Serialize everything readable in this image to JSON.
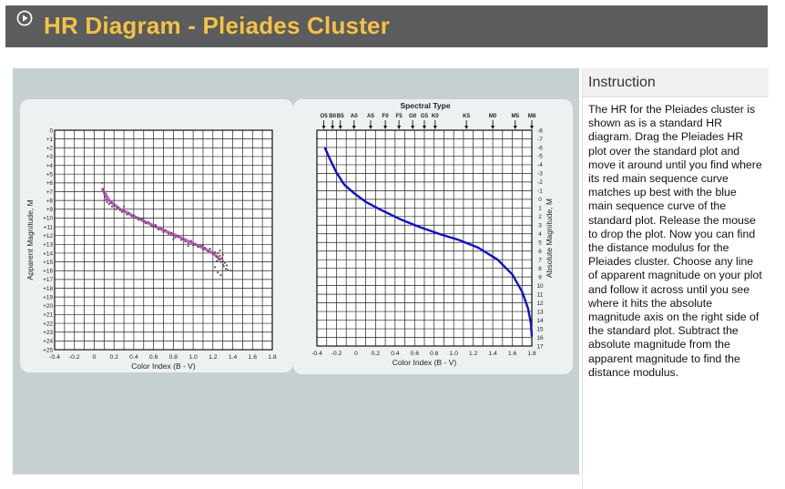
{
  "app": {
    "title": "HR Diagram - Pleiades Cluster",
    "title_color": "#f6c144",
    "icon": "play-circle-icon"
  },
  "instruction": {
    "heading": "Instruction",
    "text": "The HR for the Pleiades cluster is shown as is a standard HR diagram. Drag the Pleiades HR plot over the standard plot and move it around until you find where its red main sequence curve matches up best with the blue main sequence curve of the standard plot. Release the mouse to drop the plot. Now you can find the distance modulus for the Pleiades cluster. Choose any line of apparent magnitude on your plot and follow it across until you see where it hits the absolute magnitude axis on the right side of the standard plot. Subtract the absolute magnitude from the apparent magnitude to find the distance modulus."
  },
  "chart_data": [
    {
      "type": "scatter",
      "name": "pleiades-plot",
      "title": "",
      "xlabel": "Color Index (B - V)",
      "ylabel": "Apparent Magnitude, M",
      "xlim": [
        -0.4,
        1.8
      ],
      "ylim": [
        0,
        25
      ],
      "y_inverted": true,
      "x_ticks": [
        "-0.4",
        "-0.2",
        "0",
        "0.2",
        "0.4",
        "0.6",
        "0.8",
        "1.0",
        "1.2",
        "1.4",
        "1.6",
        "1.8"
      ],
      "y_ticks": [
        "0",
        "+1",
        "+2",
        "+3",
        "+4",
        "+5",
        "+6",
        "+7",
        "+8",
        "+9",
        "+10",
        "+11",
        "+12",
        "+13",
        "+14",
        "+15",
        "+16",
        "+17",
        "+18",
        "+19",
        "+20",
        "+21",
        "+22",
        "+23",
        "+24",
        "+25"
      ],
      "grid": true,
      "point_color": "#555555",
      "curve_color": "#c040c0",
      "curve": {
        "x": [
          0.08,
          0.15,
          0.25,
          0.4,
          0.55,
          0.7,
          0.85,
          1.0,
          1.1,
          1.2,
          1.28
        ],
        "y": [
          6.6,
          8.0,
          8.9,
          9.8,
          10.6,
          11.4,
          12.1,
          12.9,
          13.4,
          14.0,
          14.8
        ]
      },
      "points": {
        "x": [
          0.08,
          0.09,
          0.1,
          0.11,
          0.12,
          0.13,
          0.15,
          0.17,
          0.18,
          0.2,
          0.22,
          0.24,
          0.26,
          0.28,
          0.3,
          0.33,
          0.35,
          0.38,
          0.4,
          0.42,
          0.45,
          0.48,
          0.5,
          0.52,
          0.55,
          0.58,
          0.6,
          0.62,
          0.65,
          0.68,
          0.7,
          0.72,
          0.75,
          0.78,
          0.8,
          0.82,
          0.85,
          0.88,
          0.9,
          0.92,
          0.95,
          0.98,
          1.0,
          1.02,
          1.05,
          1.08,
          1.1,
          1.12,
          1.15,
          1.17,
          1.2,
          1.22,
          1.24,
          1.25,
          1.26,
          1.27,
          1.28,
          1.29,
          1.3,
          1.3,
          1.31,
          1.32,
          1.33,
          1.34,
          1.25,
          1.22,
          1.28,
          1.3,
          1.35,
          1.38,
          1.27,
          1.24,
          0.3,
          0.45,
          0.62,
          0.8,
          0.95,
          1.1
        ],
        "y": [
          6.0,
          6.8,
          7.2,
          7.6,
          7.9,
          8.2,
          8.4,
          8.3,
          8.7,
          8.6,
          9.0,
          8.8,
          9.1,
          9.3,
          9.2,
          9.6,
          9.4,
          9.8,
          9.7,
          10.0,
          10.2,
          10.1,
          10.4,
          10.6,
          10.5,
          10.9,
          11.0,
          10.8,
          11.3,
          11.2,
          11.6,
          11.4,
          11.8,
          11.7,
          12.0,
          12.2,
          12.1,
          12.5,
          12.4,
          12.7,
          12.9,
          12.6,
          13.1,
          13.0,
          13.3,
          13.2,
          13.6,
          13.4,
          13.8,
          13.5,
          14.1,
          13.9,
          14.4,
          14.0,
          14.7,
          14.3,
          15.0,
          14.6,
          15.3,
          14.9,
          15.5,
          15.1,
          15.8,
          15.4,
          16.2,
          15.6,
          16.5,
          14.2,
          15.9,
          16.0,
          13.7,
          14.9,
          8.7,
          10.0,
          11.0,
          12.4,
          13.2,
          13.1
        ]
      }
    },
    {
      "type": "line",
      "name": "standard-plot",
      "title": "Spectral Type",
      "xlabel": "Color Index (B - V)",
      "ylabel": "Absolute Magnitude, M",
      "xlim": [
        -0.4,
        1.8
      ],
      "ylim": [
        -8,
        17
      ],
      "y_inverted": true,
      "x_ticks": [
        "-0.4",
        "-0.2",
        "0",
        "0.2",
        "0.4",
        "0.6",
        "0.8",
        "1.0",
        "1.2",
        "1.4",
        "1.6",
        "1.8"
      ],
      "y_ticks": [
        "-8",
        "-7",
        "-6",
        "-5",
        "-4",
        "-3",
        "-2",
        "-1",
        "0",
        "1",
        "2",
        "3",
        "4",
        "5",
        "6",
        "7",
        "8",
        "9",
        "10",
        "11",
        "12",
        "13",
        "14",
        "15",
        "16",
        "17"
      ],
      "spectral_types": [
        "O5",
        "B0",
        "B5",
        "A0",
        "A5",
        "F0",
        "F5",
        "G0",
        "G5",
        "K0",
        "K5",
        "M0",
        "M5",
        "M8"
      ],
      "spectral_x": [
        -0.33,
        -0.24,
        -0.16,
        -0.02,
        0.15,
        0.3,
        0.44,
        0.58,
        0.7,
        0.81,
        1.13,
        1.4,
        1.63,
        1.8
      ],
      "grid": true,
      "line_color": "#1010c8",
      "main_sequence": {
        "x": [
          -0.32,
          -0.26,
          -0.2,
          -0.12,
          -0.02,
          0.1,
          0.25,
          0.45,
          0.65,
          0.85,
          1.05,
          1.25,
          1.45,
          1.6,
          1.7,
          1.76,
          1.79,
          1.8
        ],
        "y": [
          -6.0,
          -4.5,
          -3.1,
          -1.7,
          -0.7,
          0.3,
          1.2,
          2.3,
          3.2,
          4.0,
          4.7,
          5.6,
          7.0,
          8.7,
          10.7,
          12.6,
          14.3,
          15.9
        ]
      }
    }
  ]
}
